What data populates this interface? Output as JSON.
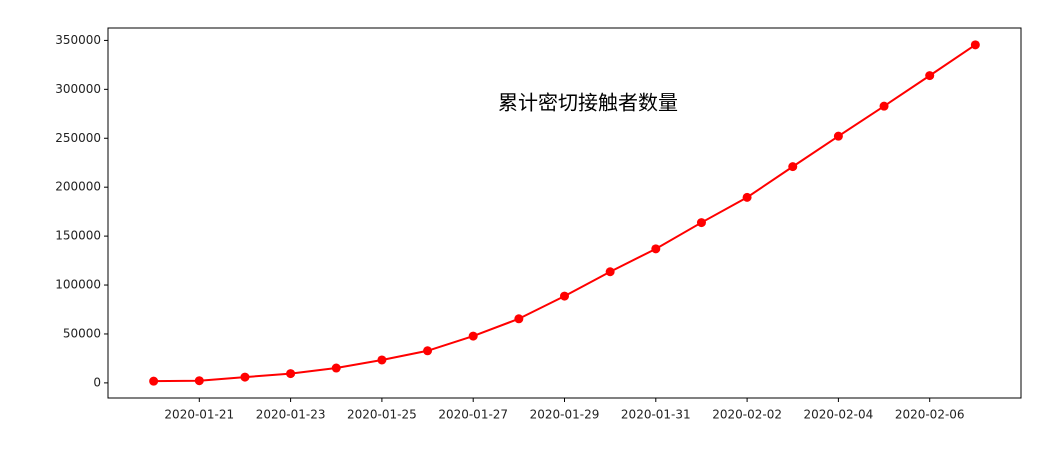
{
  "chart_data": {
    "type": "line",
    "title": "累计密切接触者数量",
    "x": [
      "2020-01-20",
      "2020-01-21",
      "2020-01-22",
      "2020-01-23",
      "2020-01-24",
      "2020-01-25",
      "2020-01-26",
      "2020-01-27",
      "2020-01-28",
      "2020-01-29",
      "2020-01-30",
      "2020-01-31",
      "2020-02-01",
      "2020-02-02",
      "2020-02-03",
      "2020-02-04",
      "2020-02-05",
      "2020-02-06",
      "2020-02-07"
    ],
    "values": [
      1739,
      2197,
      5897,
      9507,
      15197,
      23431,
      32799,
      47833,
      65537,
      88693,
      113579,
      136987,
      163844,
      189583,
      221015,
      252154,
      282813,
      314028,
      345498
    ],
    "color": "#ff0000",
    "xlim": [
      "2020-01-19",
      "2020-02-08"
    ],
    "xticks": [
      "2020-01-21",
      "2020-01-23",
      "2020-01-25",
      "2020-01-27",
      "2020-01-29",
      "2020-01-31",
      "2020-02-02",
      "2020-02-04",
      "2020-02-06"
    ],
    "ylim": [
      -15449,
      362686
    ],
    "yticks": [
      0,
      50000,
      100000,
      150000,
      200000,
      250000,
      300000,
      350000
    ],
    "grid": false
  }
}
